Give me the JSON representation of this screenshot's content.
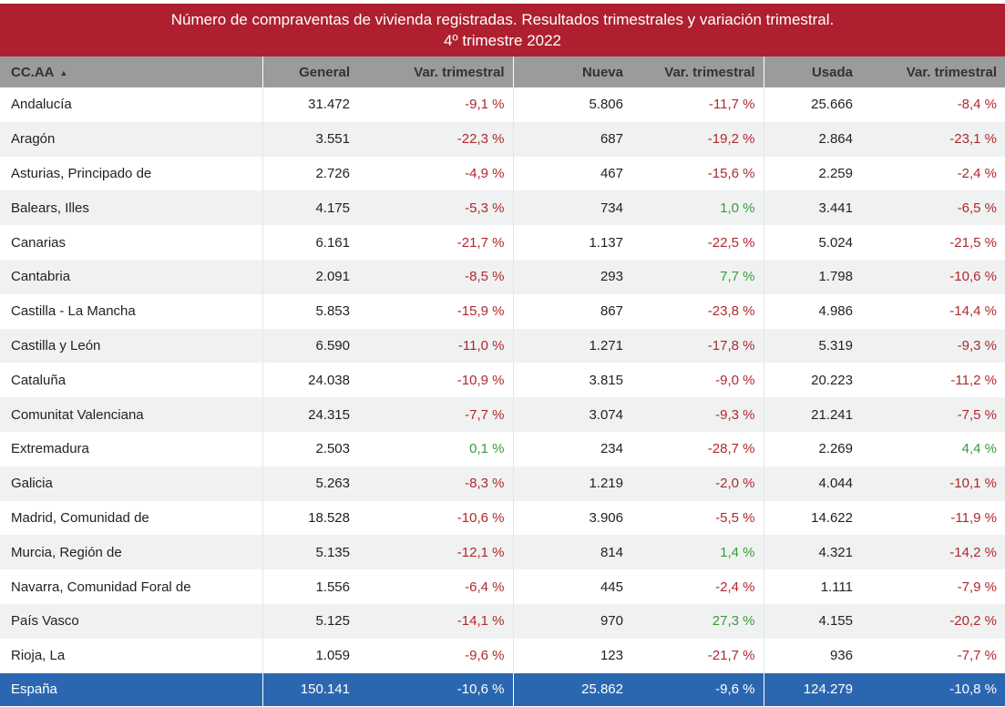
{
  "title": {
    "line1": "Número de compraventas de vivienda registradas. Resultados trimestrales  y variación trimestral.",
    "line2": "4º trimestre 2022"
  },
  "headers": {
    "region": "CC.AA",
    "sort_icon": "▲",
    "general": "General",
    "general_var": "Var. trimestral",
    "nueva": "Nueva",
    "nueva_var": "Var. trimestral",
    "usada": "Usada",
    "usada_var": "Var. trimestral"
  },
  "colors": {
    "header_red": "#ae202f",
    "negative": "#b0282c",
    "positive": "#3a9a3a",
    "total_blue": "#2b67b0"
  },
  "rows": [
    {
      "region": "Andalucía",
      "general": "31.472",
      "general_var": "-9,1 %",
      "nueva": "5.806",
      "nueva_var": "-11,7 %",
      "usada": "25.666",
      "usada_var": "-8,4 %"
    },
    {
      "region": "Aragón",
      "general": "3.551",
      "general_var": "-22,3 %",
      "nueva": "687",
      "nueva_var": "-19,2 %",
      "usada": "2.864",
      "usada_var": "-23,1 %"
    },
    {
      "region": "Asturias, Principado de",
      "general": "2.726",
      "general_var": "-4,9 %",
      "nueva": "467",
      "nueva_var": "-15,6 %",
      "usada": "2.259",
      "usada_var": "-2,4 %"
    },
    {
      "region": "Balears, Illes",
      "general": "4.175",
      "general_var": "-5,3 %",
      "nueva": "734",
      "nueva_var": "1,0 %",
      "usada": "3.441",
      "usada_var": "-6,5 %"
    },
    {
      "region": "Canarias",
      "general": "6.161",
      "general_var": "-21,7 %",
      "nueva": "1.137",
      "nueva_var": "-22,5 %",
      "usada": "5.024",
      "usada_var": "-21,5 %"
    },
    {
      "region": "Cantabria",
      "general": "2.091",
      "general_var": "-8,5 %",
      "nueva": "293",
      "nueva_var": "7,7 %",
      "usada": "1.798",
      "usada_var": "-10,6 %"
    },
    {
      "region": "Castilla - La Mancha",
      "general": "5.853",
      "general_var": "-15,9 %",
      "nueva": "867",
      "nueva_var": "-23,8 %",
      "usada": "4.986",
      "usada_var": "-14,4 %"
    },
    {
      "region": "Castilla y León",
      "general": "6.590",
      "general_var": "-11,0 %",
      "nueva": "1.271",
      "nueva_var": "-17,8 %",
      "usada": "5.319",
      "usada_var": "-9,3 %"
    },
    {
      "region": "Cataluña",
      "general": "24.038",
      "general_var": "-10,9 %",
      "nueva": "3.815",
      "nueva_var": "-9,0 %",
      "usada": "20.223",
      "usada_var": "-11,2 %"
    },
    {
      "region": "Comunitat Valenciana",
      "general": "24.315",
      "general_var": "-7,7 %",
      "nueva": "3.074",
      "nueva_var": "-9,3 %",
      "usada": "21.241",
      "usada_var": "-7,5 %"
    },
    {
      "region": "Extremadura",
      "general": "2.503",
      "general_var": "0,1 %",
      "nueva": "234",
      "nueva_var": "-28,7 %",
      "usada": "2.269",
      "usada_var": "4,4 %"
    },
    {
      "region": "Galicia",
      "general": "5.263",
      "general_var": "-8,3 %",
      "nueva": "1.219",
      "nueva_var": "-2,0 %",
      "usada": "4.044",
      "usada_var": "-10,1 %"
    },
    {
      "region": "Madrid, Comunidad de",
      "general": "18.528",
      "general_var": "-10,6 %",
      "nueva": "3.906",
      "nueva_var": "-5,5 %",
      "usada": "14.622",
      "usada_var": "-11,9 %"
    },
    {
      "region": "Murcia, Región de",
      "general": "5.135",
      "general_var": "-12,1 %",
      "nueva": "814",
      "nueva_var": "1,4 %",
      "usada": "4.321",
      "usada_var": "-14,2 %"
    },
    {
      "region": "Navarra, Comunidad Foral de",
      "general": "1.556",
      "general_var": "-6,4 %",
      "nueva": "445",
      "nueva_var": "-2,4 %",
      "usada": "1.111",
      "usada_var": "-7,9 %"
    },
    {
      "region": "País Vasco",
      "general": "5.125",
      "general_var": "-14,1 %",
      "nueva": "970",
      "nueva_var": "27,3 %",
      "usada": "4.155",
      "usada_var": "-20,2 %"
    },
    {
      "region": "Rioja, La",
      "general": "1.059",
      "general_var": "-9,6 %",
      "nueva": "123",
      "nueva_var": "-21,7 %",
      "usada": "936",
      "usada_var": "-7,7 %"
    }
  ],
  "total": {
    "region": "España",
    "general": "150.141",
    "general_var": "-10,6 %",
    "nueva": "25.862",
    "nueva_var": "-9,6 %",
    "usada": "124.279",
    "usada_var": "-10,8 %"
  }
}
